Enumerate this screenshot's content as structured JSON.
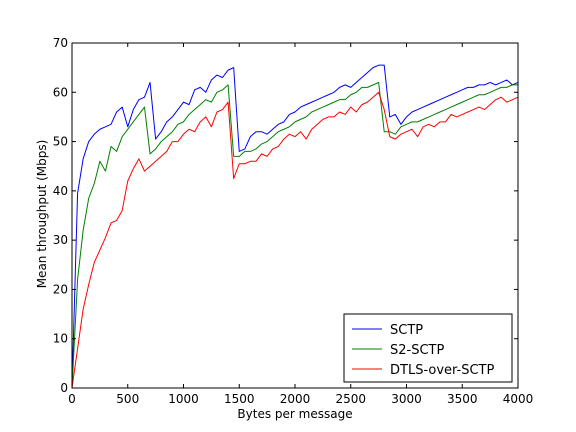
{
  "chart_data": {
    "type": "line",
    "title": "",
    "xlabel": "Bytes per message",
    "ylabel": "Mean throughput (Mbps)",
    "xlim": [
      0,
      4000
    ],
    "ylim": [
      0,
      70
    ],
    "xticks": [
      0,
      500,
      1000,
      1500,
      2000,
      2500,
      3000,
      3500,
      4000
    ],
    "yticks": [
      0,
      10,
      20,
      30,
      40,
      50,
      60,
      70
    ],
    "grid": false,
    "legend_position": "lower-right",
    "series": [
      {
        "name": "SCTP",
        "color": "#0000ff",
        "x": [
          0,
          50,
          100,
          150,
          200,
          250,
          300,
          350,
          400,
          450,
          500,
          550,
          600,
          650,
          700,
          750,
          800,
          850,
          900,
          950,
          1000,
          1050,
          1100,
          1150,
          1200,
          1250,
          1300,
          1350,
          1400,
          1450,
          1500,
          1550,
          1600,
          1650,
          1700,
          1750,
          1800,
          1850,
          1900,
          1950,
          2000,
          2050,
          2100,
          2150,
          2200,
          2250,
          2300,
          2350,
          2400,
          2450,
          2500,
          2550,
          2600,
          2650,
          2700,
          2750,
          2800,
          2850,
          2900,
          2950,
          3000,
          3050,
          3100,
          3150,
          3200,
          3250,
          3300,
          3350,
          3400,
          3450,
          3500,
          3550,
          3600,
          3650,
          3700,
          3750,
          3800,
          3850,
          3900,
          3950,
          4000
        ],
        "values": [
          0,
          39.5,
          46.5,
          50.0,
          51.5,
          52.5,
          53.0,
          53.5,
          56.0,
          57.0,
          53.0,
          56.5,
          58.5,
          59.0,
          62.0,
          50.5,
          52.0,
          54.0,
          55.0,
          56.5,
          58.0,
          57.5,
          60.5,
          61.0,
          60.0,
          62.5,
          63.5,
          63.0,
          64.5,
          65.0,
          48.0,
          48.5,
          51.0,
          52.0,
          52.0,
          51.5,
          52.5,
          53.5,
          54.0,
          55.5,
          56.0,
          57.0,
          57.5,
          58.0,
          58.5,
          59.0,
          59.5,
          60.0,
          61.0,
          61.5,
          61.0,
          62.0,
          63.0,
          64.0,
          65.0,
          65.5,
          65.5,
          55.0,
          55.5,
          53.5,
          55.0,
          56.0,
          56.5,
          57.0,
          57.5,
          58.0,
          58.5,
          59.0,
          59.5,
          60.0,
          60.5,
          61.0,
          61.0,
          61.5,
          61.5,
          62.0,
          61.5,
          62.0,
          62.5,
          61.5,
          62.0
        ]
      },
      {
        "name": "S2-SCTP",
        "color": "#008000",
        "x": [
          0,
          50,
          100,
          150,
          200,
          250,
          300,
          350,
          400,
          450,
          500,
          550,
          600,
          650,
          700,
          750,
          800,
          850,
          900,
          950,
          1000,
          1050,
          1100,
          1150,
          1200,
          1250,
          1300,
          1350,
          1400,
          1450,
          1500,
          1550,
          1600,
          1650,
          1700,
          1750,
          1800,
          1850,
          1900,
          1950,
          2000,
          2050,
          2100,
          2150,
          2200,
          2250,
          2300,
          2350,
          2400,
          2450,
          2500,
          2550,
          2600,
          2650,
          2700,
          2750,
          2800,
          2850,
          2900,
          2950,
          3000,
          3050,
          3100,
          3150,
          3200,
          3250,
          3300,
          3350,
          3400,
          3450,
          3500,
          3550,
          3600,
          3650,
          3700,
          3750,
          3800,
          3850,
          3900,
          3950,
          4000
        ],
        "values": [
          0,
          22.0,
          32.0,
          38.5,
          41.5,
          46.0,
          44.0,
          49.0,
          48.0,
          51.0,
          52.5,
          54.0,
          55.5,
          57.0,
          47.5,
          48.5,
          50.0,
          51.0,
          52.0,
          53.5,
          54.0,
          55.5,
          56.5,
          57.5,
          58.5,
          58.0,
          60.0,
          60.5,
          61.5,
          47.0,
          47.0,
          48.0,
          48.0,
          48.5,
          49.5,
          50.0,
          51.0,
          52.0,
          52.5,
          53.0,
          54.0,
          54.5,
          55.0,
          56.0,
          56.5,
          57.0,
          57.5,
          58.0,
          58.5,
          58.5,
          59.5,
          60.0,
          61.0,
          61.0,
          61.5,
          62.0,
          52.0,
          52.0,
          51.5,
          53.0,
          53.5,
          54.0,
          54.0,
          54.5,
          55.0,
          55.5,
          56.0,
          56.5,
          57.0,
          57.5,
          58.0,
          58.5,
          59.0,
          59.5,
          59.5,
          60.0,
          60.5,
          61.0,
          61.0,
          61.5,
          61.5
        ]
      },
      {
        "name": "DTLS-over-SCTP",
        "color": "#ff0000",
        "x": [
          0,
          50,
          100,
          150,
          200,
          250,
          300,
          350,
          400,
          450,
          500,
          550,
          600,
          650,
          700,
          750,
          800,
          850,
          900,
          950,
          1000,
          1050,
          1100,
          1150,
          1200,
          1250,
          1300,
          1350,
          1400,
          1450,
          1500,
          1550,
          1600,
          1650,
          1700,
          1750,
          1800,
          1850,
          1900,
          1950,
          2000,
          2050,
          2100,
          2150,
          2200,
          2250,
          2300,
          2350,
          2400,
          2450,
          2500,
          2550,
          2600,
          2650,
          2700,
          2750,
          2800,
          2850,
          2900,
          2950,
          3000,
          3050,
          3100,
          3150,
          3200,
          3250,
          3300,
          3350,
          3400,
          3450,
          3500,
          3550,
          3600,
          3650,
          3700,
          3750,
          3800,
          3850,
          3900,
          3950,
          4000
        ],
        "values": [
          0,
          8.0,
          16.0,
          21.0,
          25.5,
          28.0,
          30.5,
          33.5,
          34.0,
          36.0,
          42.0,
          44.5,
          46.5,
          44.0,
          45.0,
          46.0,
          47.0,
          48.0,
          50.0,
          50.0,
          51.5,
          52.5,
          52.0,
          54.0,
          55.0,
          53.0,
          56.0,
          56.5,
          58.0,
          42.5,
          45.5,
          45.5,
          46.0,
          46.0,
          47.5,
          47.0,
          48.5,
          49.0,
          50.5,
          51.5,
          51.0,
          52.0,
          50.5,
          52.5,
          53.5,
          54.5,
          55.0,
          55.0,
          56.0,
          55.5,
          57.0,
          56.0,
          57.5,
          58.0,
          59.0,
          60.0,
          56.5,
          51.0,
          50.5,
          51.5,
          52.0,
          52.5,
          51.0,
          53.0,
          53.5,
          53.0,
          54.0,
          54.0,
          55.5,
          55.0,
          55.5,
          56.0,
          56.5,
          57.0,
          56.5,
          57.5,
          58.5,
          59.0,
          58.0,
          58.5,
          59.0
        ]
      }
    ]
  }
}
